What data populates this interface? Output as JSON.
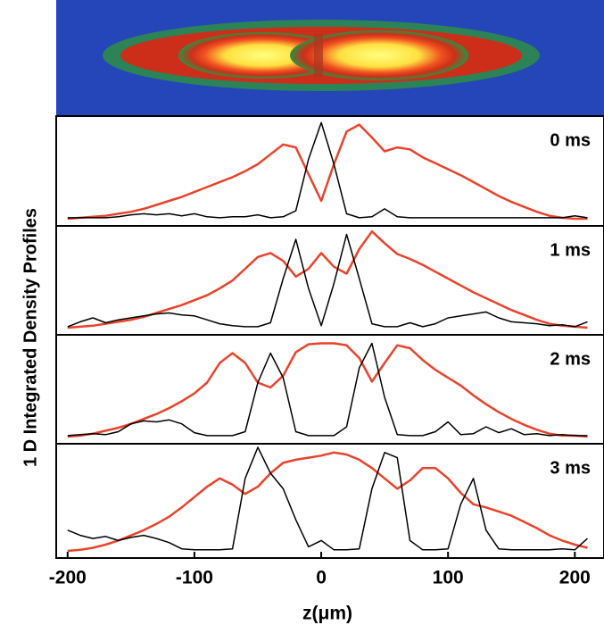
{
  "figure": {
    "ylabel": "1 D Integrated Density Profiles"
  },
  "chart_data": [
    {
      "type": "line",
      "label": "0 ms",
      "x": [
        -200,
        -190,
        -180,
        -170,
        -160,
        -150,
        -140,
        -130,
        -120,
        -110,
        -100,
        -90,
        -80,
        -70,
        -60,
        -50,
        -40,
        -30,
        -20,
        -10,
        0,
        10,
        20,
        30,
        40,
        50,
        60,
        70,
        80,
        90,
        100,
        110,
        120,
        130,
        140,
        150,
        160,
        170,
        180,
        190,
        200,
        210
      ],
      "xlim": [
        -209,
        223
      ],
      "ylim": [
        0,
        1
      ],
      "series": [
        {
          "color": "#e8432c",
          "values": [
            0.0,
            0.01,
            0.02,
            0.03,
            0.05,
            0.07,
            0.1,
            0.14,
            0.18,
            0.22,
            0.27,
            0.32,
            0.37,
            0.42,
            0.48,
            0.55,
            0.65,
            0.75,
            0.72,
            0.45,
            0.18,
            0.55,
            0.88,
            0.95,
            0.82,
            0.68,
            0.72,
            0.7,
            0.62,
            0.56,
            0.5,
            0.44,
            0.37,
            0.3,
            0.23,
            0.17,
            0.12,
            0.07,
            0.03,
            0.01,
            0.0,
            0.0
          ]
        },
        {
          "color": "#000000",
          "values": [
            0.01,
            0.01,
            0.01,
            0.01,
            0.02,
            0.04,
            0.05,
            0.04,
            0.05,
            0.03,
            0.05,
            0.02,
            0.01,
            0.02,
            0.02,
            0.04,
            0.01,
            0.02,
            0.08,
            0.6,
            0.97,
            0.55,
            0.05,
            0.01,
            0.02,
            0.1,
            0.02,
            0.01,
            0.01,
            0.01,
            0.01,
            0.01,
            0.01,
            0.01,
            0.01,
            0.01,
            0.01,
            0.01,
            0.01,
            0.01,
            0.03,
            0.01
          ]
        }
      ]
    },
    {
      "type": "line",
      "label": "1 ms",
      "x": [
        -200,
        -190,
        -180,
        -170,
        -160,
        -150,
        -140,
        -130,
        -120,
        -110,
        -100,
        -90,
        -80,
        -70,
        -60,
        -50,
        -40,
        -30,
        -20,
        -10,
        0,
        10,
        20,
        30,
        40,
        50,
        60,
        70,
        80,
        90,
        100,
        110,
        120,
        130,
        140,
        150,
        160,
        170,
        180,
        190,
        200,
        210
      ],
      "xlim": [
        -209,
        223
      ],
      "ylim": [
        0,
        1
      ],
      "series": [
        {
          "color": "#e8432c",
          "values": [
            0.0,
            0.01,
            0.02,
            0.04,
            0.06,
            0.08,
            0.11,
            0.15,
            0.19,
            0.23,
            0.28,
            0.33,
            0.4,
            0.48,
            0.6,
            0.72,
            0.76,
            0.68,
            0.52,
            0.6,
            0.76,
            0.62,
            0.55,
            0.8,
            0.98,
            0.86,
            0.75,
            0.7,
            0.64,
            0.57,
            0.5,
            0.43,
            0.36,
            0.3,
            0.24,
            0.18,
            0.13,
            0.08,
            0.04,
            0.02,
            0.01,
            0.0
          ]
        },
        {
          "color": "#000000",
          "values": [
            0.01,
            0.06,
            0.1,
            0.05,
            0.08,
            0.1,
            0.12,
            0.14,
            0.15,
            0.13,
            0.12,
            0.08,
            0.04,
            0.02,
            0.01,
            0.01,
            0.05,
            0.5,
            0.9,
            0.4,
            0.02,
            0.45,
            0.95,
            0.5,
            0.04,
            0.01,
            0.01,
            0.05,
            0.01,
            0.04,
            0.1,
            0.12,
            0.14,
            0.16,
            0.1,
            0.06,
            0.05,
            0.04,
            0.02,
            0.03,
            0.01,
            0.06
          ]
        }
      ]
    },
    {
      "type": "line",
      "label": "2 ms",
      "x": [
        -200,
        -190,
        -180,
        -170,
        -160,
        -150,
        -140,
        -130,
        -120,
        -110,
        -100,
        -90,
        -80,
        -70,
        -60,
        -50,
        -40,
        -30,
        -20,
        -10,
        0,
        10,
        20,
        30,
        40,
        50,
        60,
        70,
        80,
        90,
        100,
        110,
        120,
        130,
        140,
        150,
        160,
        170,
        180,
        190,
        200,
        210
      ],
      "xlim": [
        -209,
        223
      ],
      "ylim": [
        0,
        1
      ],
      "series": [
        {
          "color": "#e8432c",
          "values": [
            0.0,
            0.01,
            0.03,
            0.06,
            0.09,
            0.13,
            0.18,
            0.23,
            0.29,
            0.36,
            0.44,
            0.55,
            0.75,
            0.85,
            0.75,
            0.55,
            0.5,
            0.62,
            0.86,
            0.94,
            0.95,
            0.95,
            0.93,
            0.8,
            0.56,
            0.75,
            0.93,
            0.9,
            0.78,
            0.68,
            0.6,
            0.52,
            0.42,
            0.33,
            0.25,
            0.18,
            0.12,
            0.07,
            0.03,
            0.01,
            0.01,
            0.0
          ]
        },
        {
          "color": "#000000",
          "values": [
            0.01,
            0.02,
            0.03,
            0.02,
            0.05,
            0.13,
            0.16,
            0.15,
            0.17,
            0.13,
            0.04,
            0.01,
            0.01,
            0.01,
            0.05,
            0.55,
            0.85,
            0.6,
            0.05,
            0.01,
            0.01,
            0.01,
            0.1,
            0.7,
            0.95,
            0.4,
            0.02,
            0.01,
            0.01,
            0.05,
            0.15,
            0.02,
            0.03,
            0.1,
            0.04,
            0.08,
            0.02,
            0.03,
            0.01,
            0.02,
            0.01,
            0.01
          ]
        }
      ]
    },
    {
      "type": "line",
      "label": "3 ms",
      "x": [
        -200,
        -190,
        -180,
        -170,
        -160,
        -150,
        -140,
        -130,
        -120,
        -110,
        -100,
        -90,
        -80,
        -70,
        -60,
        -50,
        -40,
        -30,
        -20,
        -10,
        0,
        10,
        20,
        30,
        40,
        50,
        60,
        70,
        80,
        90,
        100,
        110,
        120,
        130,
        140,
        150,
        160,
        170,
        180,
        190,
        200,
        210
      ],
      "xlim": [
        -209,
        223
      ],
      "ylim": [
        0,
        1
      ],
      "xticks": [
        -200,
        -100,
        0,
        100,
        200
      ],
      "xlabel": "z(μm)",
      "series": [
        {
          "color": "#e8432c",
          "values": [
            0.0,
            0.01,
            0.03,
            0.06,
            0.1,
            0.15,
            0.2,
            0.26,
            0.33,
            0.42,
            0.52,
            0.62,
            0.7,
            0.64,
            0.55,
            0.62,
            0.75,
            0.85,
            0.88,
            0.9,
            0.92,
            0.95,
            0.93,
            0.88,
            0.8,
            0.7,
            0.6,
            0.68,
            0.8,
            0.8,
            0.7,
            0.56,
            0.45,
            0.42,
            0.38,
            0.34,
            0.28,
            0.22,
            0.15,
            0.1,
            0.06,
            0.03
          ]
        },
        {
          "color": "#000000",
          "values": [
            0.2,
            0.15,
            0.12,
            0.14,
            0.1,
            0.13,
            0.15,
            0.12,
            0.08,
            0.02,
            0.01,
            0.01,
            0.01,
            0.02,
            0.7,
            1.0,
            0.75,
            0.6,
            0.3,
            0.04,
            0.1,
            0.01,
            0.01,
            0.02,
            0.6,
            0.95,
            0.9,
            0.1,
            0.01,
            0.01,
            0.02,
            0.45,
            0.7,
            0.2,
            0.02,
            0.01,
            0.01,
            0.01,
            0.01,
            0.02,
            0.01,
            0.12
          ]
        }
      ]
    }
  ]
}
